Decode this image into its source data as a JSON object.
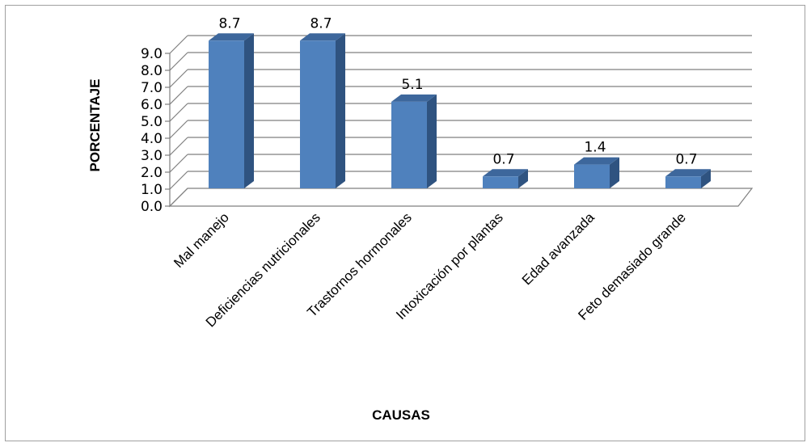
{
  "chart_data": {
    "type": "bar",
    "categories": [
      "Mal manejo",
      "Deficiencias nutricionales",
      "Trastornos hormonales",
      "Intoxicación por plantas",
      "Edad avanzada",
      "Feto demasiado grande"
    ],
    "values": [
      8.7,
      8.7,
      5.1,
      0.7,
      1.4,
      0.7
    ],
    "value_labels": [
      "8.7",
      "8.7",
      "5.1",
      "0.7",
      "1.4",
      "0.7"
    ],
    "y_ticks": [
      "0.0",
      "1.0",
      "2.0",
      "3.0",
      "4.0",
      "5.0",
      "6.0",
      "7.0",
      "8.0",
      "9.0"
    ],
    "ylim": [
      0,
      9
    ],
    "xlabel": "CAUSAS",
    "ylabel": "PORCENTAJE",
    "grid": true,
    "legend": "none",
    "style": "3d-column",
    "colors": {
      "bar_front": "#4f81bd",
      "bar_side": "#2f5380",
      "bar_top": "#3d679c",
      "grid": "#7f7f7f",
      "frame": "#a0a0a0"
    }
  }
}
